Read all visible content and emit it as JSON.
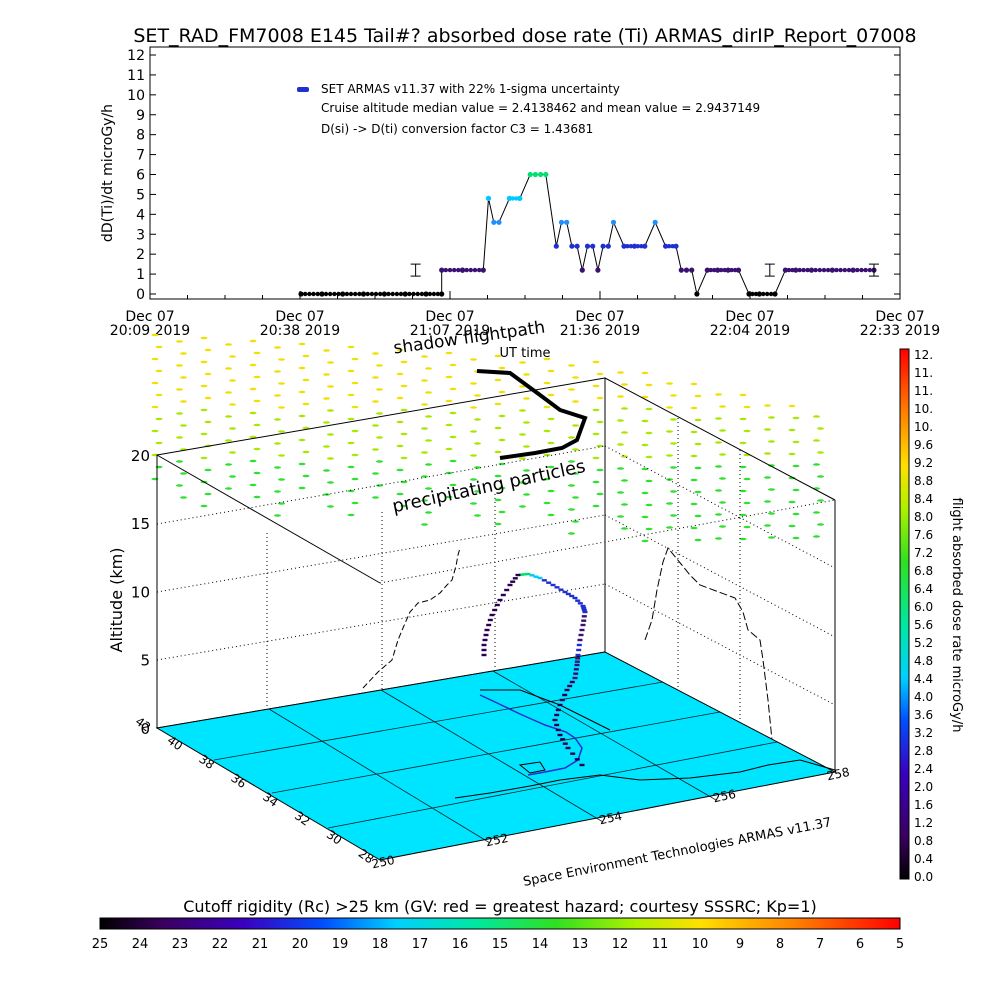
{
  "title": "SET_RAD_FM7008  E145 Tail#? absorbed dose rate (Ti) ARMAS_dirIP_Report_07008",
  "top_chart": {
    "ylabel": "dD(Ti)/dt microGy/h",
    "y_ticks": [
      "0",
      "1",
      "2",
      "3",
      "4",
      "5",
      "6",
      "7",
      "8",
      "9",
      "10",
      "11",
      "12"
    ],
    "x_ticks": [
      {
        "l1": "Dec 07",
        "l2": "20:09 2019"
      },
      {
        "l1": "Dec 07",
        "l2": "20:38 2019"
      },
      {
        "l1": "Dec 07",
        "l2": "21:07 2019"
      },
      {
        "l1": "Dec 07",
        "l2": "21:36 2019"
      },
      {
        "l1": "Dec 07",
        "l2": "22:04 2019"
      },
      {
        "l1": "Dec 07",
        "l2": "22:33 2019"
      }
    ],
    "legend_lines": [
      "SET ARMAS v11.37 with 22% 1-sigma uncertainty",
      "Cruise altitude median value = 2.4138462 and mean value = 2.9437149",
      "D(si) -> D(ti) conversion factor C3 = 1.43681"
    ],
    "annotation": "UT time"
  },
  "chart_data": [
    {
      "type": "scatter",
      "title": "SET_RAD_FM7008  E145 Tail#? absorbed dose rate (Ti) ARMAS_dirIP_Report_07008",
      "ylabel": "dD(Ti)/dt microGy/h",
      "xlabel": "UT time",
      "x_range": [
        "2019-12-07 20:09",
        "2019-12-07 22:33"
      ],
      "ylim": [
        0,
        12
      ],
      "series": [
        {
          "name": "SET ARMAS v11.37 with 22% 1-sigma uncertainty",
          "x": [
            "20:38",
            "20:42",
            "20:46",
            "20:50",
            "20:54",
            "20:58",
            "21:02",
            "21:05",
            "21:05",
            "21:09",
            "21:09",
            "21:13",
            "21:14",
            "21:15",
            "21:16",
            "21:18",
            "21:20",
            "21:22",
            "21:23",
            "21:24",
            "21:25",
            "21:27",
            "21:28",
            "21:29",
            "21:30",
            "21:31",
            "21:32",
            "21:33",
            "21:34",
            "21:35",
            "21:36",
            "21:37",
            "21:38",
            "21:40",
            "21:42",
            "21:44",
            "21:46",
            "21:48",
            "21:50",
            "21:51",
            "21:52",
            "21:53",
            "21:54",
            "21:56",
            "21:58",
            "22:00",
            "22:02",
            "22:04",
            "22:06",
            "22:09",
            "22:11",
            "22:13",
            "22:16",
            "22:20",
            "22:24",
            "22:28"
          ],
          "y": [
            0,
            0,
            0,
            0,
            0,
            0,
            0,
            0,
            1.2,
            1.2,
            1.2,
            1.2,
            4.8,
            3.6,
            3.6,
            4.8,
            4.8,
            6.0,
            6.0,
            6.0,
            6.0,
            2.4,
            3.6,
            3.6,
            2.4,
            2.4,
            1.2,
            2.4,
            2.4,
            1.2,
            2.4,
            2.4,
            3.6,
            2.4,
            2.4,
            2.4,
            3.6,
            2.4,
            2.4,
            1.2,
            1.2,
            1.2,
            0,
            1.2,
            1.2,
            1.2,
            1.2,
            0,
            0,
            0,
            1.2,
            1.2,
            1.2,
            1.2,
            1.2,
            1.2
          ]
        }
      ],
      "annotations": [
        "Cruise altitude median value = 2.4138462 and mean value = 2.9437149",
        "D(si) -> D(ti) conversion factor C3 = 1.43681"
      ]
    },
    {
      "type": "line",
      "title": "",
      "ylabel": "Altitude (km)",
      "zlim": [
        0,
        20
      ],
      "z_ticks": [
        "0",
        "5",
        "10",
        "15",
        "20"
      ],
      "lat_ticks": [
        "28",
        "30",
        "32",
        "34",
        "36",
        "38",
        "40",
        "42"
      ],
      "lon_ticks": [
        "250",
        "252",
        "254",
        "256",
        "258"
      ],
      "annotations": [
        "shadow flightpath",
        "precipitating particles"
      ],
      "credit": "Space Environment Technologies ARMAS v11.37"
    }
  ],
  "dose_colorbar": {
    "label": "flight absorbed dose rate microGy/h",
    "ticks": [
      "12.",
      "11.",
      "11.",
      "10.",
      "10.",
      "9.6",
      "9.2",
      "8.8",
      "8.4",
      "8.0",
      "7.6",
      "7.2",
      "6.8",
      "6.4",
      "6.0",
      "5.6",
      "5.2",
      "4.8",
      "4.4",
      "4.0",
      "3.6",
      "3.2",
      "2.8",
      "2.4",
      "2.0",
      "1.6",
      "1.2",
      "0.8",
      "0.4",
      "0.0"
    ]
  },
  "rigidity_colorbar": {
    "label": "Cutoff rigidity (Rc) >25 km (GV: red = greatest hazard; courtesy SSSRC; Kp=1)",
    "ticks": [
      "25",
      "24",
      "23",
      "22",
      "21",
      "20",
      "19",
      "18",
      "17",
      "16",
      "15",
      "14",
      "13",
      "12",
      "11",
      "10",
      "9",
      "8",
      "7",
      "6",
      "5"
    ]
  },
  "colors": {
    "surface": "#00e5ff",
    "track_low": "#2a0050",
    "track_mid": "#1f2fd0",
    "track_high": "#00e070",
    "precip_high": "#f0e000",
    "precip_low": "#30e030"
  }
}
